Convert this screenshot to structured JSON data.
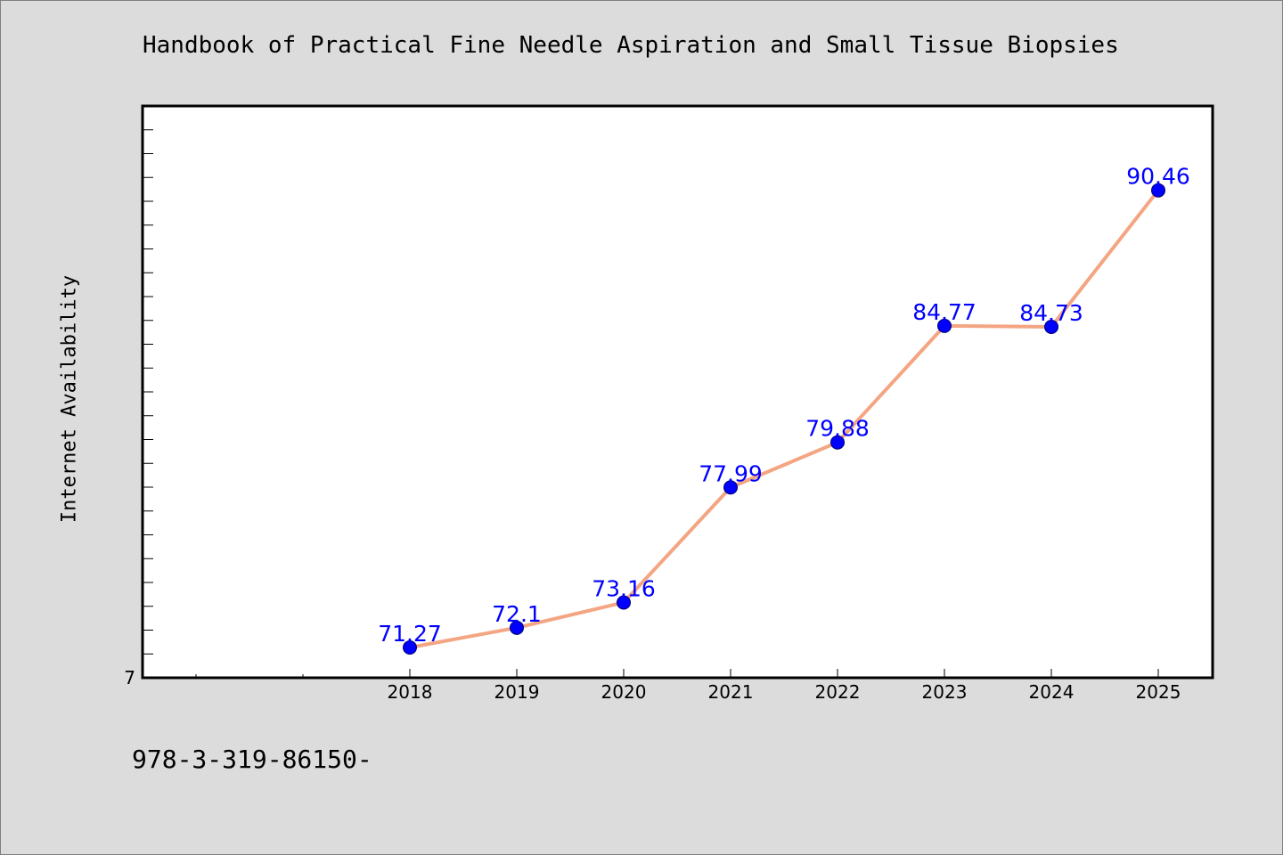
{
  "chart_data": {
    "type": "line",
    "title": "Handbook of Practical Fine Needle Aspiration and Small Tissue Biopsies",
    "xlabel": "",
    "ylabel": "Internet Availability",
    "x": [
      "2018",
      "2019",
      "2020",
      "2021",
      "2022",
      "2023",
      "2024",
      "2025"
    ],
    "series": [
      {
        "values": [
          71.27,
          72.1,
          73.16,
          77.99,
          79.88,
          84.77,
          84.73,
          90.46
        ],
        "data_labels": [
          "71.27",
          "72.1",
          "73.16",
          "77.99",
          "79.88",
          "84.77",
          "84.73",
          "90.46"
        ]
      }
    ],
    "ylim": [
      70,
      94
    ],
    "y_tick_labels": [
      "7"
    ],
    "grid": false,
    "legend": "none",
    "colors": {
      "line": "#f4a582",
      "marker": "#0000ff",
      "data_label": "#0000ff",
      "plot_background": "#ffffff",
      "figure_background": "#dcdcdc"
    }
  },
  "footnote": "978-3-319-86150-"
}
